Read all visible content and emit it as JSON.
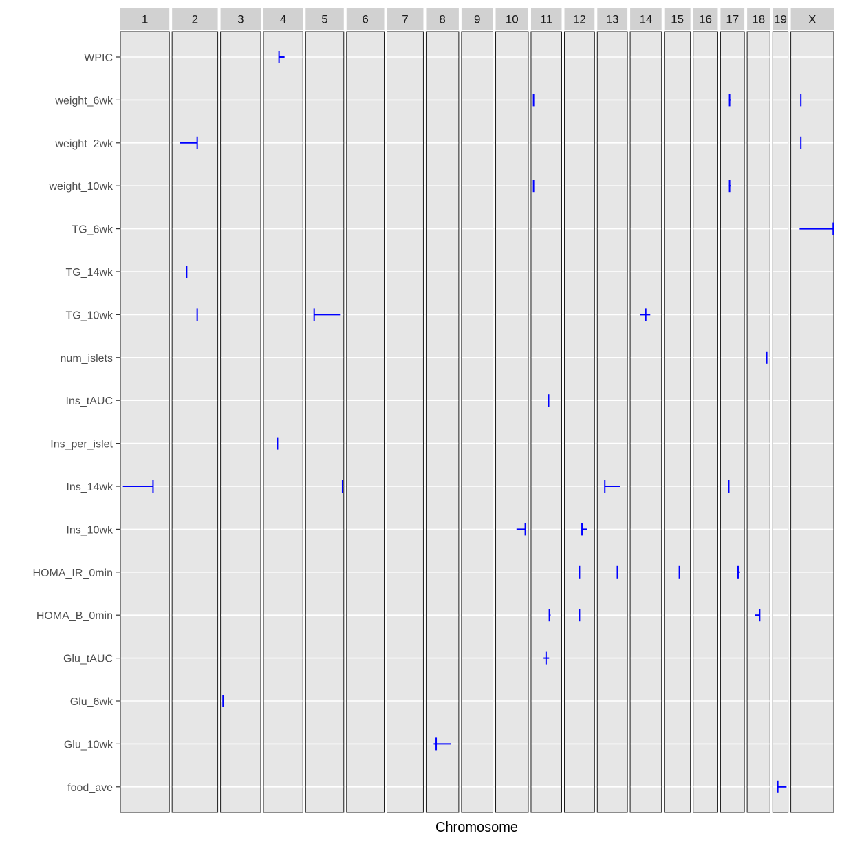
{
  "chart_data": {
    "type": "qtl-interval-plot",
    "xlabel": "Chromosome",
    "chromosomes": [
      {
        "name": "1",
        "length": 195
      },
      {
        "name": "2",
        "length": 182
      },
      {
        "name": "3",
        "length": 160
      },
      {
        "name": "4",
        "length": 157
      },
      {
        "name": "5",
        "length": 152
      },
      {
        "name": "6",
        "length": 150
      },
      {
        "name": "7",
        "length": 145
      },
      {
        "name": "8",
        "length": 130
      },
      {
        "name": "9",
        "length": 125
      },
      {
        "name": "10",
        "length": 130
      },
      {
        "name": "11",
        "length": 122
      },
      {
        "name": "12",
        "length": 120
      },
      {
        "name": "13",
        "length": 120
      },
      {
        "name": "14",
        "length": 125
      },
      {
        "name": "15",
        "length": 104
      },
      {
        "name": "16",
        "length": 98
      },
      {
        "name": "17",
        "length": 95
      },
      {
        "name": "18",
        "length": 91
      },
      {
        "name": "19",
        "length": 61
      },
      {
        "name": "X",
        "length": 171
      }
    ],
    "traits": [
      "WPIC",
      "weight_6wk",
      "weight_2wk",
      "weight_10wk",
      "TG_6wk",
      "TG_14wk",
      "TG_10wk",
      "num_islets",
      "Ins_tAUC",
      "Ins_per_islet",
      "Ins_14wk",
      "Ins_10wk",
      "HOMA_IR_0min",
      "HOMA_B_0min",
      "Glu_tAUC",
      "Glu_6wk",
      "Glu_10wk",
      "food_ave"
    ],
    "intervals": [
      {
        "trait": "WPIC",
        "chr": "4",
        "lo": 62,
        "pos": 62,
        "hi": 84
      },
      {
        "trait": "weight_6wk",
        "chr": "11",
        "lo": 10,
        "pos": 10,
        "hi": 12
      },
      {
        "trait": "weight_6wk",
        "chr": "17",
        "lo": 33,
        "pos": 36,
        "hi": 40
      },
      {
        "trait": "weight_6wk",
        "chr": "X",
        "lo": 38,
        "pos": 40,
        "hi": 42
      },
      {
        "trait": "weight_2wk",
        "chr": "2",
        "lo": 30,
        "pos": 100,
        "hi": 100
      },
      {
        "trait": "weight_2wk",
        "chr": "X",
        "lo": 40,
        "pos": 40,
        "hi": 42
      },
      {
        "trait": "weight_10wk",
        "chr": "11",
        "lo": 10,
        "pos": 10,
        "hi": 12
      },
      {
        "trait": "weight_10wk",
        "chr": "17",
        "lo": 33,
        "pos": 36,
        "hi": 40
      },
      {
        "trait": "TG_6wk",
        "chr": "X",
        "lo": 35,
        "pos": 169,
        "hi": 169
      },
      {
        "trait": "TG_14wk",
        "chr": "2",
        "lo": 58,
        "pos": 58,
        "hi": 60
      },
      {
        "trait": "TG_10wk",
        "chr": "2",
        "lo": 98,
        "pos": 100,
        "hi": 102
      },
      {
        "trait": "TG_10wk",
        "chr": "5",
        "lo": 34,
        "pos": 34,
        "hi": 137
      },
      {
        "trait": "TG_10wk",
        "chr": "14",
        "lo": 40,
        "pos": 62,
        "hi": 80
      },
      {
        "trait": "num_islets",
        "chr": "18",
        "lo": 78,
        "pos": 78,
        "hi": 80
      },
      {
        "trait": "Ins_tAUC",
        "chr": "11",
        "lo": 70,
        "pos": 70,
        "hi": 72
      },
      {
        "trait": "Ins_per_islet",
        "chr": "4",
        "lo": 55,
        "pos": 56,
        "hi": 58
      },
      {
        "trait": "Ins_14wk",
        "chr": "1",
        "lo": 10,
        "pos": 130,
        "hi": 130
      },
      {
        "trait": "Ins_14wk",
        "chr": "5",
        "lo": 147,
        "pos": 147,
        "hi": 149
      },
      {
        "trait": "Ins_14wk",
        "chr": "13",
        "lo": 30,
        "pos": 30,
        "hi": 90
      },
      {
        "trait": "Ins_14wk",
        "chr": "17",
        "lo": 33,
        "pos": 33,
        "hi": 35
      },
      {
        "trait": "Ins_10wk",
        "chr": "10",
        "lo": 83,
        "pos": 118,
        "hi": 118
      },
      {
        "trait": "Ins_10wk",
        "chr": "12",
        "lo": 70,
        "pos": 70,
        "hi": 90
      },
      {
        "trait": "HOMA_IR_0min",
        "chr": "12",
        "lo": 60,
        "pos": 60,
        "hi": 62
      },
      {
        "trait": "HOMA_IR_0min",
        "chr": "13",
        "lo": 80,
        "pos": 80,
        "hi": 82
      },
      {
        "trait": "HOMA_IR_0min",
        "chr": "15",
        "lo": 58,
        "pos": 60,
        "hi": 62
      },
      {
        "trait": "HOMA_IR_0min",
        "chr": "17",
        "lo": 67,
        "pos": 70,
        "hi": 75
      },
      {
        "trait": "HOMA_B_0min",
        "chr": "11",
        "lo": 71,
        "pos": 73,
        "hi": 78
      },
      {
        "trait": "HOMA_B_0min",
        "chr": "12",
        "lo": 60,
        "pos": 60,
        "hi": 62
      },
      {
        "trait": "HOMA_B_0min",
        "chr": "18",
        "lo": 30,
        "pos": 50,
        "hi": 50
      },
      {
        "trait": "Glu_tAUC",
        "chr": "11",
        "lo": 50,
        "pos": 60,
        "hi": 72
      },
      {
        "trait": "Glu_6wk",
        "chr": "3",
        "lo": 10,
        "pos": 10,
        "hi": 12
      },
      {
        "trait": "Glu_10wk",
        "chr": "8",
        "lo": 30,
        "pos": 40,
        "hi": 100
      },
      {
        "trait": "food_ave",
        "chr": "19",
        "lo": 20,
        "pos": 20,
        "hi": 55
      }
    ],
    "colors": {
      "interval": "#0000ff",
      "panel": "#e6e6e6",
      "strip": "#d1d1d1",
      "grid": "#ffffff"
    }
  }
}
